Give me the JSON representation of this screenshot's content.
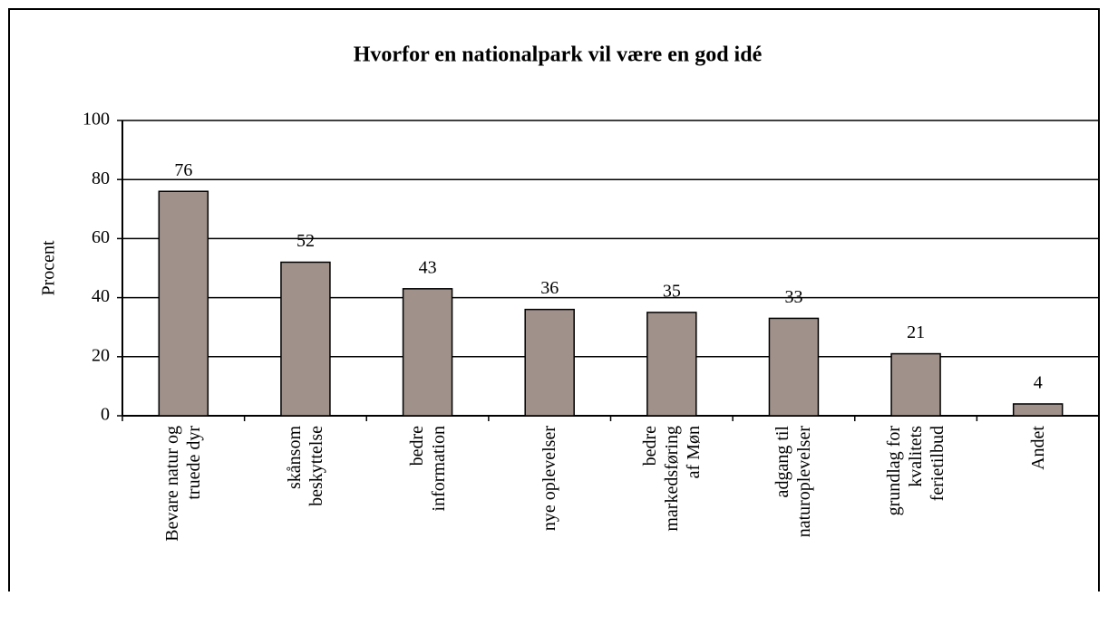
{
  "chart_data": {
    "type": "bar",
    "title": "Hvorfor en nationalpark vil være en god idé",
    "y_label": "Procent",
    "categories": [
      "Bevare natur og\ntruede dyr",
      "skånsom\nbeskyttelse",
      "bedre\ninformation",
      "nye oplevelser",
      "bedre\nmarkedsføring\naf Møn",
      "adgang til\nnaturoplevelser",
      "grundlag for\nkvalitets\nferietilbud",
      "Andet"
    ],
    "values": [
      76,
      52,
      43,
      36,
      35,
      33,
      21,
      4
    ],
    "color": "#a0918a",
    "ylim": [
      0,
      100
    ],
    "yticks": [
      0,
      20,
      40,
      60,
      80,
      100
    ],
    "grid": true
  }
}
